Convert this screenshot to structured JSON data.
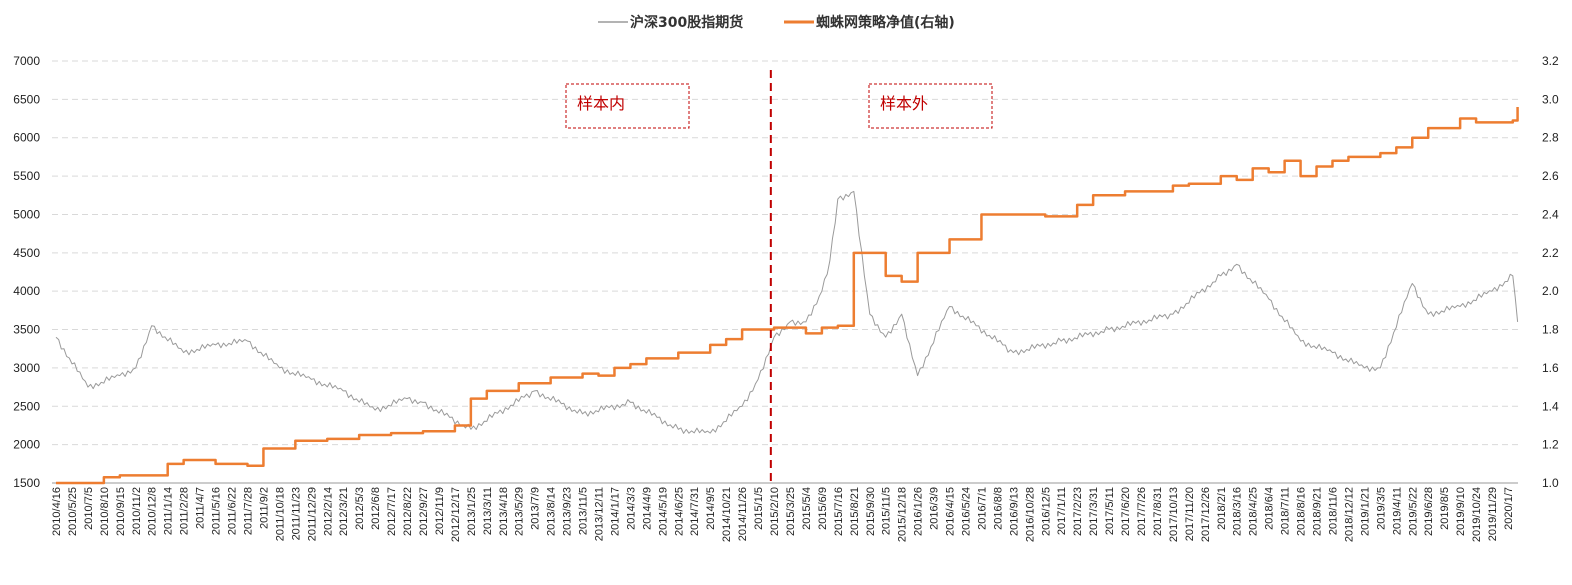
{
  "chart_data": {
    "type": "line",
    "legend": {
      "position": "top-center",
      "items": [
        {
          "label": "沪深300股指期货",
          "color": "#9a9a9a"
        },
        {
          "label": "蜘蛛网策略净值(右轴)",
          "color": "#ed7d31"
        }
      ]
    },
    "y_left": {
      "min": 1500,
      "max": 7000,
      "ticks": [
        "1500",
        "2000",
        "2500",
        "3000",
        "3500",
        "4000",
        "4500",
        "5000",
        "5500",
        "6000",
        "6500",
        "7000"
      ]
    },
    "y_right": {
      "min": 1.0,
      "max": 3.2,
      "ticks": [
        "1.0",
        "1.2",
        "1.4",
        "1.6",
        "1.8",
        "2.0",
        "2.2",
        "2.4",
        "2.6",
        "2.8",
        "3.0",
        "3.2"
      ]
    },
    "grid": true,
    "x_labels": [
      "2010/4/16",
      "2010/5/25",
      "2010/7/5",
      "2010/8/10",
      "2010/9/15",
      "2010/11/2",
      "2010/12/8",
      "2011/1/14",
      "2011/2/28",
      "2011/4/7",
      "2011/5/16",
      "2011/6/22",
      "2011/7/28",
      "2011/9/2",
      "2011/10/18",
      "2011/11/23",
      "2011/12/29",
      "2012/2/14",
      "2012/3/21",
      "2012/5/3",
      "2012/6/8",
      "2012/7/17",
      "2012/8/22",
      "2012/9/27",
      "2012/11/9",
      "2012/12/17",
      "2013/1/25",
      "2013/3/11",
      "2013/4/18",
      "2013/5/29",
      "2013/7/9",
      "2013/8/14",
      "2013/9/23",
      "2013/11/5",
      "2013/12/11",
      "2014/1/17",
      "2014/3/3",
      "2014/4/9",
      "2014/5/19",
      "2014/6/25",
      "2014/7/31",
      "2014/9/5",
      "2014/10/21",
      "2014/11/26",
      "2015/1/5",
      "2015/2/10",
      "2015/3/25",
      "2015/5/4",
      "2015/6/9",
      "2015/7/16",
      "2015/8/21",
      "2015/9/30",
      "2015/11/5",
      "2015/12/18",
      "2016/1/26",
      "2016/3/9",
      "2016/4/15",
      "2016/5/24",
      "2016/7/1",
      "2016/8/8",
      "2016/9/13",
      "2016/10/28",
      "2016/12/5",
      "2017/1/11",
      "2017/2/23",
      "2017/3/31",
      "2017/5/11",
      "2017/6/20",
      "2017/7/26",
      "2017/8/31",
      "2017/10/13",
      "2017/11/20",
      "2017/12/26",
      "2018/2/1",
      "2018/3/16",
      "2018/4/25",
      "2018/6/4",
      "2018/7/11",
      "2018/8/16",
      "2018/9/21",
      "2018/11/6",
      "2018/12/12",
      "2019/1/21",
      "2019/3/5",
      "2019/4/11",
      "2019/5/22",
      "2019/6/28",
      "2019/8/5",
      "2019/9/10",
      "2019/10/24",
      "2019/11/29",
      "2020/1/7"
    ],
    "series": [
      {
        "name": "沪深300股指期货",
        "axis": "left",
        "color": "#9a9a9a",
        "x_index": [
          0,
          2,
          4,
          5,
          6,
          8,
          10,
          12,
          14,
          16,
          18,
          20,
          22,
          23,
          26,
          30,
          33,
          36,
          39,
          41,
          43,
          44,
          45,
          46,
          47,
          48,
          48.5,
          49,
          50,
          51,
          52,
          53,
          54,
          56,
          60,
          63,
          66,
          70,
          73,
          74,
          76,
          78,
          80,
          82,
          83,
          85,
          86,
          88,
          90,
          91.3,
          91.6
        ],
        "values": [
          3400,
          2750,
          2900,
          3000,
          3550,
          3200,
          3300,
          3350,
          3000,
          2850,
          2700,
          2450,
          2600,
          2550,
          2200,
          2700,
          2400,
          2550,
          2200,
          2150,
          2500,
          2850,
          3400,
          3600,
          3600,
          4000,
          4400,
          5200,
          5300,
          3700,
          3400,
          3700,
          2900,
          3800,
          3200,
          3350,
          3500,
          3700,
          4200,
          4350,
          3900,
          3350,
          3200,
          3000,
          3000,
          4100,
          3700,
          3800,
          4000,
          4200,
          3600
        ]
      },
      {
        "name": "蜘蛛网策略净值(右轴)",
        "axis": "right",
        "color": "#ed7d31",
        "x_index": [
          0,
          2,
          3,
          4,
          5,
          7,
          8,
          10,
          12,
          13,
          15,
          17,
          19,
          21,
          23,
          25,
          26,
          27,
          29,
          31,
          33,
          34,
          35,
          36,
          37,
          39,
          41,
          42,
          43,
          45,
          47,
          48,
          49,
          50,
          51,
          52,
          53,
          54,
          56,
          57,
          58,
          60,
          61,
          62,
          64,
          65,
          67,
          69,
          70,
          71,
          72,
          73,
          74,
          75,
          76,
          77,
          78,
          79,
          80,
          81,
          82,
          83,
          84,
          85,
          86,
          88,
          89,
          90,
          91.3,
          91.6
        ],
        "values": [
          1.0,
          1.0,
          1.03,
          1.04,
          1.04,
          1.1,
          1.12,
          1.1,
          1.09,
          1.18,
          1.22,
          1.23,
          1.25,
          1.26,
          1.27,
          1.3,
          1.44,
          1.48,
          1.52,
          1.55,
          1.57,
          1.56,
          1.6,
          1.62,
          1.65,
          1.68,
          1.72,
          1.75,
          1.8,
          1.81,
          1.78,
          1.81,
          1.82,
          2.2,
          2.2,
          2.08,
          2.05,
          2.2,
          2.27,
          2.27,
          2.4,
          2.4,
          2.4,
          2.39,
          2.45,
          2.5,
          2.52,
          2.52,
          2.55,
          2.56,
          2.56,
          2.6,
          2.58,
          2.64,
          2.62,
          2.68,
          2.6,
          2.65,
          2.68,
          2.7,
          2.7,
          2.72,
          2.75,
          2.8,
          2.85,
          2.9,
          2.88,
          2.88,
          2.89,
          2.96
        ]
      }
    ],
    "divider": {
      "x_label_index": 44.8,
      "style": "dashed",
      "color": "#c00000"
    },
    "annotations": [
      {
        "text": "样本内",
        "color": "#c00000"
      },
      {
        "text": "样本外",
        "color": "#c00000"
      }
    ]
  }
}
